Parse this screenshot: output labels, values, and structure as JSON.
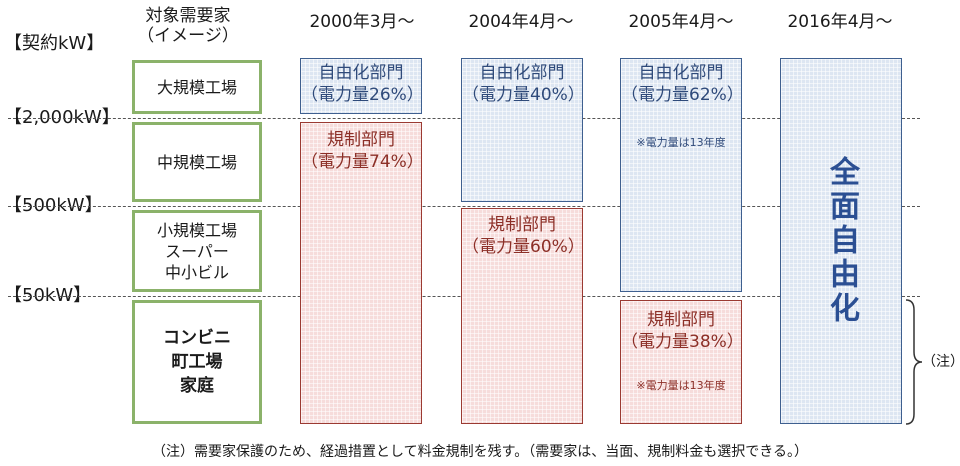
{
  "axis": {
    "label": "【契約kW】",
    "thresholds": [
      "【2,000kW】",
      "【500kW】",
      "【50kW】"
    ]
  },
  "category_header": "対象需要家\n（イメージ）",
  "periods": [
    "2000年3月～",
    "2004年4月～",
    "2005年4月～",
    "2016年4月～"
  ],
  "categories": [
    {
      "label": "大規模工場",
      "bold": false
    },
    {
      "label": "中規模工場",
      "bold": false
    },
    {
      "label": "小規模工場\nスーパー\n中小ビル",
      "bold": false
    },
    {
      "label": "コンビニ\n町工場\n家庭",
      "bold": true
    }
  ],
  "blocks": {
    "p2000_lib": {
      "title": "自由化部門",
      "share": "（電力量26%）"
    },
    "p2000_reg": {
      "title": "規制部門",
      "share": "（電力量74%）"
    },
    "p2004_lib": {
      "title": "自由化部門",
      "share": "（電力量40%）"
    },
    "p2004_reg": {
      "title": "規制部門",
      "share": "（電力量60%）"
    },
    "p2005_lib": {
      "title": "自由化部門",
      "share": "（電力量62%）",
      "note": "※電力量は13年度"
    },
    "p2005_reg": {
      "title": "規制部門",
      "share": "（電力量38%）",
      "note": "※電力量は13年度"
    },
    "p2016": {
      "title": "全面自由化"
    }
  },
  "brace_note": "（注）",
  "footer_note": "（注）需要家保護のため、経過措置として料金規制を残す。（需要家は、当面、規制料金も選択できる。）",
  "colors": {
    "liberalized": "#dde6f2",
    "regulated": "#f6dcdb",
    "category_border": "#8bb26a",
    "full_lib_text": "#2b4f93"
  }
}
